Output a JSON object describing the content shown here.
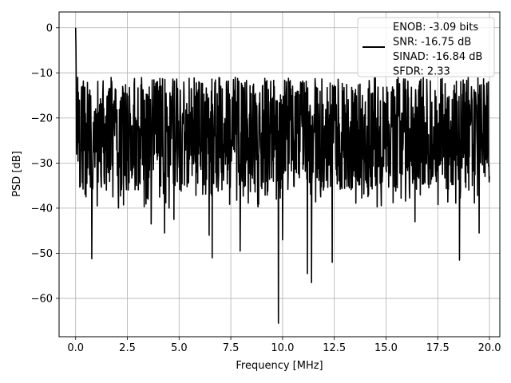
{
  "chart_data": {
    "type": "line",
    "title": "",
    "xlabel": "Frequency [MHz]",
    "ylabel": "PSD [dB]",
    "xlim": [
      -0.8,
      20.5
    ],
    "ylim": [
      -68.5,
      3.5
    ],
    "x_ticks": [
      0.0,
      2.5,
      5.0,
      7.5,
      10.0,
      12.5,
      15.0,
      17.5,
      20.0
    ],
    "x_tick_labels": [
      "0.0",
      "2.5",
      "5.0",
      "7.5",
      "10.0",
      "12.5",
      "15.0",
      "17.5",
      "20.0"
    ],
    "y_ticks": [
      0,
      -10,
      -20,
      -30,
      -40,
      -50,
      -60
    ],
    "y_tick_labels": [
      "0",
      "−10",
      "−20",
      "−30",
      "−40",
      "−50",
      "−60"
    ],
    "grid": true,
    "legend_position": "top-right",
    "series": [
      {
        "name": "ENOB: -3.09 bits\nSNR: -16.75 dB\nSINAD: -16.84 dB\nSFDR: 2.33",
        "color": "#000000",
        "x_range": [
          0,
          20
        ],
        "peak": {
          "x": 0.0,
          "y": 0.0
        },
        "noise_band": {
          "upper": -11,
          "lower": -36,
          "median": -23
        },
        "notable_dips": [
          {
            "x": 0.04,
            "y": -28
          },
          {
            "x": 0.78,
            "y": -51.2
          },
          {
            "x": 0.5,
            "y": -37.5
          },
          {
            "x": 1.8,
            "y": -37.5
          },
          {
            "x": 3.65,
            "y": -43.5
          },
          {
            "x": 4.3,
            "y": -45.5
          },
          {
            "x": 4.75,
            "y": -42.5
          },
          {
            "x": 6.45,
            "y": -46
          },
          {
            "x": 6.6,
            "y": -51
          },
          {
            "x": 7.95,
            "y": -49.5
          },
          {
            "x": 9.8,
            "y": -65.5
          },
          {
            "x": 10.0,
            "y": -47
          },
          {
            "x": 11.2,
            "y": -54.5
          },
          {
            "x": 11.4,
            "y": -56.5
          },
          {
            "x": 12.4,
            "y": -52
          },
          {
            "x": 16.4,
            "y": -43
          },
          {
            "x": 18.55,
            "y": -51.5
          },
          {
            "x": 19.5,
            "y": -45.5
          }
        ]
      }
    ]
  }
}
